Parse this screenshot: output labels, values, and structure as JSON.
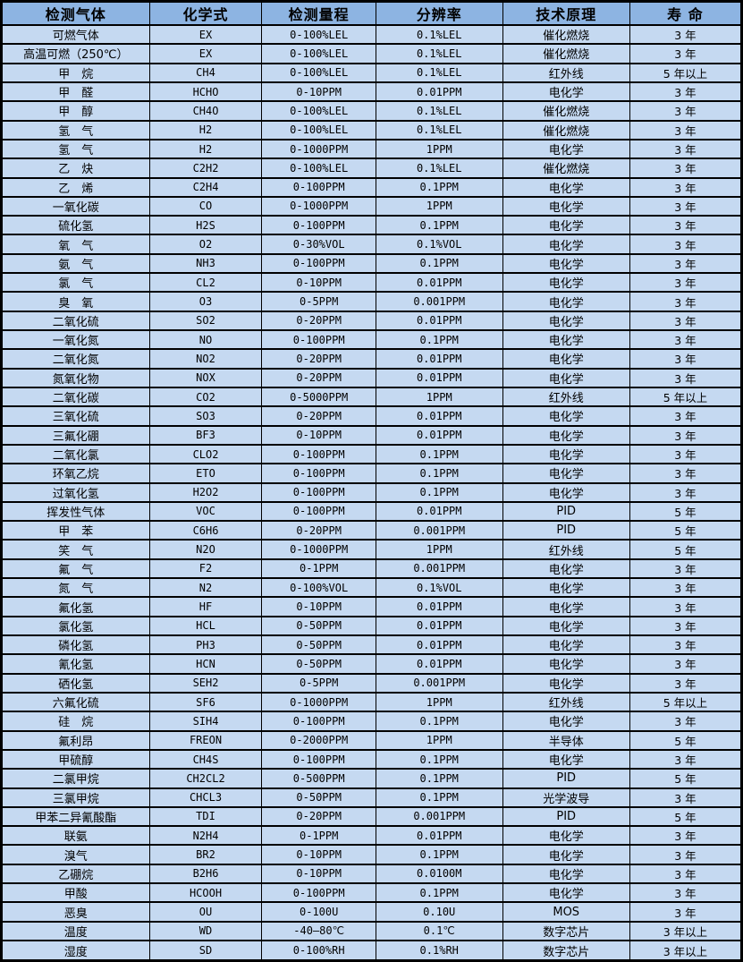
{
  "colors": {
    "header_bg": "#8DB4E2",
    "row_bg": "#C5D9F1",
    "border": "#000000",
    "text": "#000000"
  },
  "table": {
    "columns": [
      "检测气体",
      "化学式",
      "检测量程",
      "分辨率",
      "技术原理",
      "寿 命"
    ],
    "column_widths_pct": [
      20.0,
      15.2,
      15.4,
      17.1,
      17.2,
      15.1
    ],
    "rows": [
      [
        "可燃气体",
        "EX",
        "0-100%LEL",
        "0.1%LEL",
        "催化燃烧",
        "3 年"
      ],
      [
        "高温可燃（250℃）",
        "EX",
        "0-100%LEL",
        "0.1%LEL",
        "催化燃烧",
        "3 年"
      ],
      [
        "甲　烷",
        "CH4",
        "0-100%LEL",
        "0.1%LEL",
        "红外线",
        "5 年以上"
      ],
      [
        "甲　醛",
        "HCHO",
        "0-10PPM",
        "0.01PPM",
        "电化学",
        "3 年"
      ],
      [
        "甲　醇",
        "CH4O",
        "0-100%LEL",
        "0.1%LEL",
        "催化燃烧",
        "3 年"
      ],
      [
        "氢　气",
        "H2",
        "0-100%LEL",
        "0.1%LEL",
        "催化燃烧",
        "3 年"
      ],
      [
        "氢　气",
        "H2",
        "0-1000PPM",
        "1PPM",
        "电化学",
        "3 年"
      ],
      [
        "乙　炔",
        "C2H2",
        "0-100%LEL",
        "0.1%LEL",
        "催化燃烧",
        "3 年"
      ],
      [
        "乙　烯",
        "C2H4",
        "0-100PPM",
        "0.1PPM",
        "电化学",
        "3 年"
      ],
      [
        "一氧化碳",
        "CO",
        "0-1000PPM",
        "1PPM",
        "电化学",
        "3 年"
      ],
      [
        "硫化氢",
        "H2S",
        "0-100PPM",
        "0.1PPM",
        "电化学",
        "3 年"
      ],
      [
        "氧　气",
        "O2",
        "0-30%VOL",
        "0.1%VOL",
        "电化学",
        "3 年"
      ],
      [
        "氨　气",
        "NH3",
        "0-100PPM",
        "0.1PPM",
        "电化学",
        "3 年"
      ],
      [
        "氯　气",
        "CL2",
        "0-10PPM",
        "0.01PPM",
        "电化学",
        "3 年"
      ],
      [
        "臭　氧",
        "O3",
        "0-5PPM",
        "0.001PPM",
        "电化学",
        "3 年"
      ],
      [
        "二氧化硫",
        "SO2",
        "0-20PPM",
        "0.01PPM",
        "电化学",
        "3 年"
      ],
      [
        "一氧化氮",
        "NO",
        "0-100PPM",
        "0.1PPM",
        "电化学",
        "3 年"
      ],
      [
        "二氧化氮",
        "NO2",
        "0-20PPM",
        "0.01PPM",
        "电化学",
        "3 年"
      ],
      [
        "氮氧化物",
        "NOX",
        "0-20PPM",
        "0.01PPM",
        "电化学",
        "3 年"
      ],
      [
        "二氧化碳",
        "CO2",
        "0-5000PPM",
        "1PPM",
        "红外线",
        "5 年以上"
      ],
      [
        "三氧化硫",
        "SO3",
        "0-20PPM",
        "0.01PPM",
        "电化学",
        "3 年"
      ],
      [
        "三氟化硼",
        "BF3",
        "0-10PPM",
        "0.01PPM",
        "电化学",
        "3 年"
      ],
      [
        "二氧化氯",
        "CLO2",
        "0-100PPM",
        "0.1PPM",
        "电化学",
        "3 年"
      ],
      [
        "环氧乙烷",
        "ETO",
        "0-100PPM",
        "0.1PPM",
        "电化学",
        "3 年"
      ],
      [
        "过氧化氢",
        "H2O2",
        "0-100PPM",
        "0.1PPM",
        "电化学",
        "3 年"
      ],
      [
        "挥发性气体",
        "VOC",
        "0-100PPM",
        "0.01PPM",
        "PID",
        "5 年"
      ],
      [
        "甲　苯",
        "C6H6",
        "0-20PPM",
        "0.001PPM",
        "PID",
        "5 年"
      ],
      [
        "笑　气",
        "N2O",
        "0-1000PPM",
        "1PPM",
        "红外线",
        "5 年"
      ],
      [
        "氟　气",
        "F2",
        "0-1PPM",
        "0.001PPM",
        "电化学",
        "3 年"
      ],
      [
        "氮　气",
        "N2",
        "0-100%VOL",
        "0.1%VOL",
        "电化学",
        "3 年"
      ],
      [
        "氟化氢",
        "HF",
        "0-10PPM",
        "0.01PPM",
        "电化学",
        "3 年"
      ],
      [
        "氯化氢",
        "HCL",
        "0-50PPM",
        "0.01PPM",
        "电化学",
        "3 年"
      ],
      [
        "磷化氢",
        "PH3",
        "0-50PPM",
        "0.01PPM",
        "电化学",
        "3 年"
      ],
      [
        "氰化氢",
        "HCN",
        "0-50PPM",
        "0.01PPM",
        "电化学",
        "3 年"
      ],
      [
        "硒化氢",
        "SEH2",
        "0-5PPM",
        "0.001PPM",
        "电化学",
        "3 年"
      ],
      [
        "六氟化硫",
        "SF6",
        "0-1000PPM",
        "1PPM",
        "红外线",
        "5 年以上"
      ],
      [
        "硅　烷",
        "SIH4",
        "0-100PPM",
        "0.1PPM",
        "电化学",
        "3 年"
      ],
      [
        "氟利昂",
        "FREON",
        "0-2000PPM",
        "1PPM",
        "半导体",
        "5 年"
      ],
      [
        "甲硫醇",
        "CH4S",
        "0-100PPM",
        "0.1PPM",
        "电化学",
        "3 年"
      ],
      [
        "二氯甲烷",
        "CH2CL2",
        "0-500PPM",
        "0.1PPM",
        "PID",
        "5 年"
      ],
      [
        "三氯甲烷",
        "CHCL3",
        "0-50PPM",
        "0.1PPM",
        "光学波导",
        "3 年"
      ],
      [
        "甲苯二异氰酸酯",
        "TDI",
        "0-20PPM",
        "0.001PPM",
        "PID",
        "5 年"
      ],
      [
        "联氨",
        "N2H4",
        "0-1PPM",
        "0.01PPM",
        "电化学",
        "3 年"
      ],
      [
        "溴气",
        "BR2",
        "0-10PPM",
        "0.1PPM",
        "电化学",
        "3 年"
      ],
      [
        "乙硼烷",
        "B2H6",
        "0-10PPM",
        "0.0100M",
        "电化学",
        "3 年"
      ],
      [
        "甲酸",
        "HCOOH",
        "0-100PPM",
        "0.1PPM",
        "电化学",
        "3 年"
      ],
      [
        "恶臭",
        "OU",
        "0-100U",
        "0.10U",
        "MOS",
        "3 年"
      ],
      [
        "温度",
        "WD",
        "-40—80℃",
        "0.1℃",
        "数字芯片",
        "3 年以上"
      ],
      [
        "湿度",
        "SD",
        "0-100%RH",
        "0.1%RH",
        "数字芯片",
        "3 年以上"
      ]
    ]
  }
}
